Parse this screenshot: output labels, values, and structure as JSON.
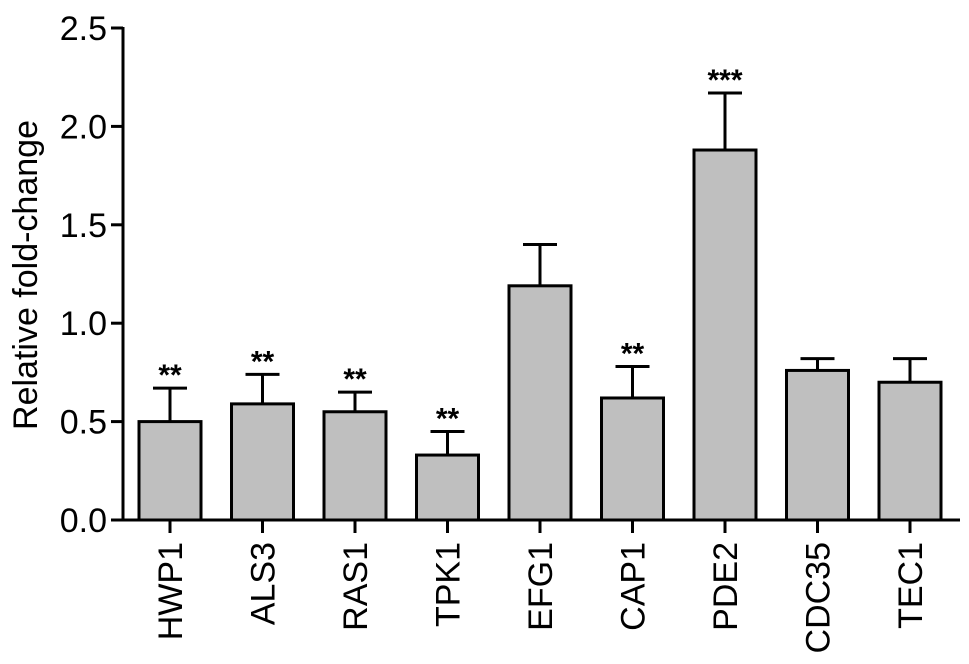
{
  "chart_data": {
    "type": "bar",
    "ylabel": "Relative fold-change",
    "ylim": [
      0,
      2.5
    ],
    "yticks": [
      "0.0",
      "0.5",
      "1.0",
      "1.5",
      "2.0",
      "2.5"
    ],
    "ytick_values": [
      0,
      0.5,
      1.0,
      1.5,
      2.0,
      2.5
    ],
    "categories": [
      "HWP1",
      "ALS3",
      "RAS1",
      "TPK1",
      "EFG1",
      "CAP1",
      "PDE2",
      "CDC35",
      "TEC1"
    ],
    "values": [
      0.5,
      0.59,
      0.55,
      0.33,
      1.19,
      0.62,
      1.88,
      0.76,
      0.7
    ],
    "error_upper": [
      0.67,
      0.74,
      0.65,
      0.45,
      1.4,
      0.78,
      2.17,
      0.82,
      0.82
    ],
    "significance": [
      "**",
      "**",
      "**",
      "**",
      "",
      "**",
      "***",
      "",
      ""
    ],
    "bar_color": "#bfbfbf",
    "grid": false,
    "legend": "none"
  }
}
